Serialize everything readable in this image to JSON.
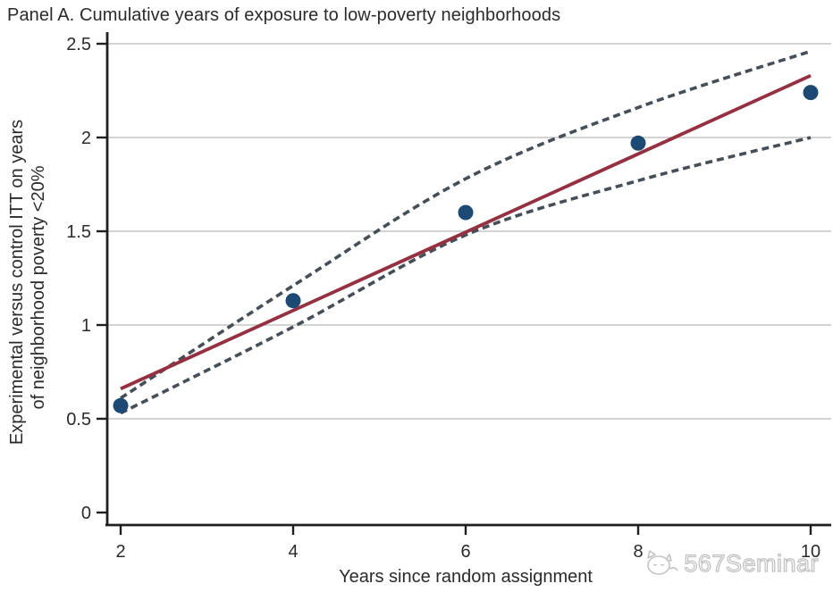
{
  "watermark": {
    "text": "567Seminar",
    "icon": "cat-sketch-logo"
  },
  "chart_data": {
    "type": "scatter",
    "title": "Panel A. Cumulative years of exposure to low-poverty neighborhoods",
    "xlabel": "Years since random assignment",
    "ylabel_lines": [
      "Experimental versus control ITT on years",
      "of neighborhood poverty <20%"
    ],
    "x": [
      2,
      4,
      6,
      8,
      10
    ],
    "scatter_values": [
      0.57,
      1.13,
      1.6,
      1.97,
      2.24
    ],
    "fit_line": {
      "x": [
        2,
        10
      ],
      "y": [
        0.66,
        2.33
      ]
    },
    "ci_upper": {
      "x": [
        2,
        4,
        6,
        8,
        10
      ],
      "y": [
        0.61,
        1.21,
        1.78,
        2.16,
        2.46
      ]
    },
    "ci_lower": {
      "x": [
        2,
        4,
        6,
        8,
        10
      ],
      "y": [
        0.53,
        0.99,
        1.48,
        1.77,
        2.0
      ]
    },
    "xticks": [
      2,
      4,
      6,
      8,
      10
    ],
    "xtick_labels": [
      "2",
      "4",
      "6",
      "8",
      "10"
    ],
    "yticks": [
      0,
      0.5,
      1,
      1.5,
      2,
      2.5
    ],
    "ytick_labels": [
      "0",
      "0.5",
      "1",
      "1.5",
      "2",
      "2.5"
    ],
    "xlim": [
      2,
      10
    ],
    "ylim": [
      0,
      2.5
    ],
    "grid": "horizontal-only",
    "legend": "none",
    "colors": {
      "scatter": "#1c4a75",
      "fit": "#962f3f",
      "ci": "#454f59",
      "grid": "#c6c6c6",
      "axis": "#1f1f1f",
      "text": "#2b2b2b"
    }
  }
}
